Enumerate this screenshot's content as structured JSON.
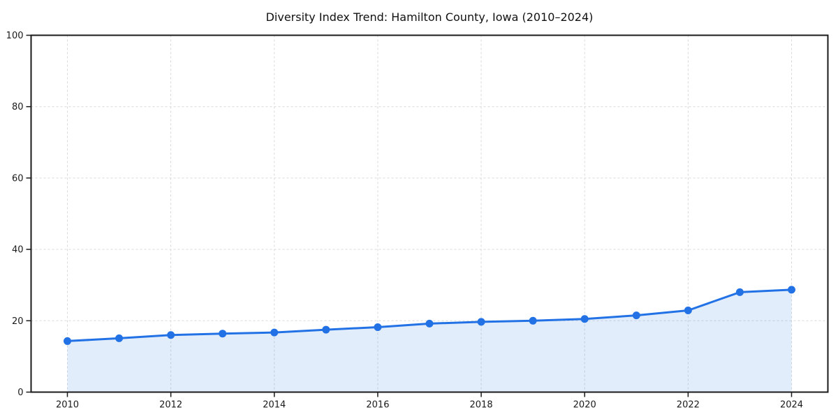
{
  "page": {
    "background_color": "#ffffff"
  },
  "chart_data": {
    "type": "line",
    "title": "Diversity Index Trend: Hamilton County, Iowa (2010–2024)",
    "x": [
      2010,
      2011,
      2012,
      2013,
      2014,
      2015,
      2016,
      2017,
      2018,
      2019,
      2020,
      2021,
      2022,
      2023,
      2024
    ],
    "series": [
      {
        "name": "Diversity Index",
        "values": [
          14.3,
          15.1,
          16.0,
          16.4,
          16.7,
          17.5,
          18.2,
          19.2,
          19.7,
          20.0,
          20.5,
          21.5,
          22.9,
          28.0,
          28.7
        ]
      }
    ],
    "xlabel": "",
    "ylabel": "",
    "xticks": [
      2010,
      2012,
      2014,
      2016,
      2018,
      2020,
      2022,
      2024
    ],
    "yticks": [
      0,
      20,
      40,
      60,
      80,
      100
    ],
    "ylim": [
      0,
      100
    ],
    "grid": true,
    "legend_position": "none",
    "style": {
      "line_color": "#2272e6",
      "marker_color": "#2272e6",
      "fill_color": "#2272e6",
      "fill_opacity": 0.13,
      "grid_color": "#d9d9d9",
      "axis_color": "#1a1a1a",
      "text_color": "#1a1a1a",
      "title_color": "#111111"
    }
  }
}
